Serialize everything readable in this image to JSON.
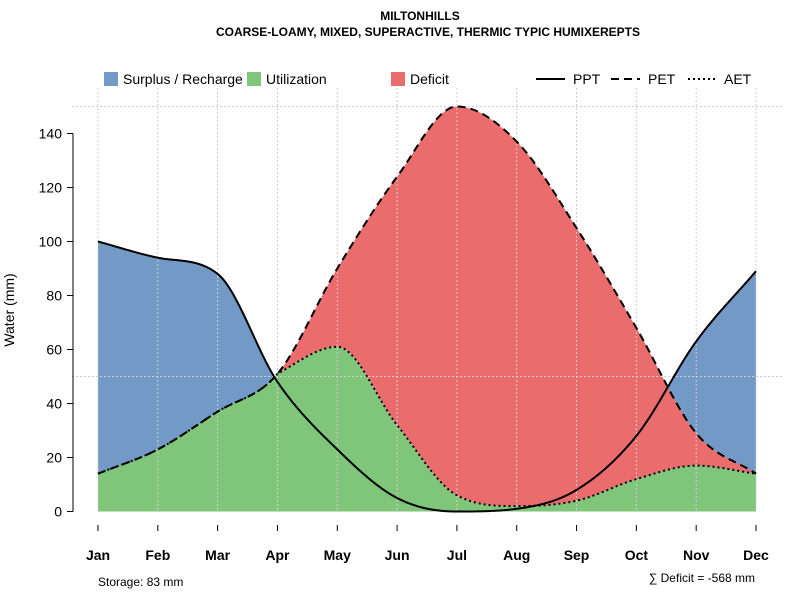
{
  "chart_data": {
    "type": "area",
    "title": "MILTONHILLS",
    "subtitle": "COARSE-LOAMY, MIXED, SUPERACTIVE, THERMIC TYPIC HUMIXEREPTS",
    "ylabel": "Water (mm)",
    "xlabel": "",
    "ylim": [
      0,
      155
    ],
    "yticks": [
      0,
      20,
      40,
      60,
      80,
      100,
      120,
      140
    ],
    "categories": [
      "Jan",
      "Feb",
      "Mar",
      "Apr",
      "May",
      "Jun",
      "Jul",
      "Aug",
      "Sep",
      "Oct",
      "Nov",
      "Dec"
    ],
    "series": [
      {
        "name": "PPT",
        "values": [
          100,
          94,
          88,
          48,
          23,
          5,
          0,
          1,
          8,
          28,
          63,
          89
        ]
      },
      {
        "name": "PET",
        "values": [
          14,
          23,
          37,
          51,
          90,
          124,
          150,
          137,
          105,
          68,
          29,
          14
        ]
      },
      {
        "name": "AET",
        "values": [
          14,
          23,
          37,
          51,
          61,
          32,
          6,
          2,
          4,
          12,
          17,
          14
        ]
      }
    ],
    "legend": {
      "areas": [
        {
          "label": "Surplus / Recharge",
          "color": "#7399c6"
        },
        {
          "label": "Utilization",
          "color": "#7fc57a"
        },
        {
          "label": "Deficit",
          "color": "#eb6c6c"
        }
      ],
      "lines": [
        {
          "label": "PPT",
          "dash": "solid"
        },
        {
          "label": "PET",
          "dash": "dashed"
        },
        {
          "label": "AET",
          "dash": "dotted"
        }
      ],
      "position": "top"
    },
    "annotations": {
      "storage": "Storage: 83 mm",
      "deficit": "∑ Deficit = -568 mm"
    },
    "grid": true
  }
}
